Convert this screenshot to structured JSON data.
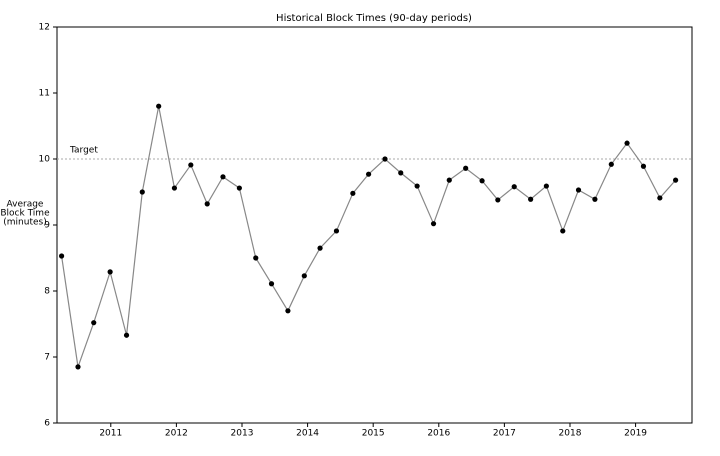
{
  "chart_data": {
    "type": "line",
    "title": "Historical Block Times (90-day periods)",
    "y_label_lines": [
      "Average",
      "Block Time",
      "(minutes)"
    ],
    "x": [
      2010.25,
      2010.5,
      2010.74,
      2010.99,
      2011.24,
      2011.48,
      2011.73,
      2011.97,
      2012.22,
      2012.47,
      2012.71,
      2012.96,
      2013.21,
      2013.45,
      2013.7,
      2013.95,
      2014.19,
      2014.44,
      2014.69,
      2014.93,
      2015.18,
      2015.42,
      2015.67,
      2015.92,
      2016.16,
      2016.41,
      2016.66,
      2016.9,
      2017.15,
      2017.4,
      2017.64,
      2017.89,
      2018.13,
      2018.38,
      2018.63,
      2018.87,
      2019.12,
      2019.37,
      2019.61
    ],
    "series": [
      {
        "color": "#888888",
        "marker_color": "#000000",
        "values": [
          8.53,
          6.85,
          7.52,
          8.29,
          7.33,
          9.5,
          10.8,
          9.56,
          9.91,
          9.32,
          9.73,
          9.56,
          8.5,
          8.11,
          7.7,
          8.23,
          8.65,
          8.91,
          9.48,
          9.77,
          10.0,
          9.79,
          9.59,
          9.02,
          9.68,
          9.86,
          9.67,
          9.38,
          9.58,
          9.39,
          9.59,
          8.91,
          9.53,
          9.39,
          9.92,
          10.24,
          9.89,
          9.41,
          9.68
        ]
      }
    ],
    "target": {
      "value": 10,
      "label": "Target",
      "color": "#aaaaaa"
    },
    "xlim": [
      2010.18,
      2019.86
    ],
    "xticks": [
      2011,
      2012,
      2013,
      2014,
      2015,
      2016,
      2017,
      2018,
      2019
    ],
    "ylim": [
      6,
      12
    ],
    "yticks": [
      6,
      7,
      8,
      9,
      10,
      11,
      12
    ]
  }
}
